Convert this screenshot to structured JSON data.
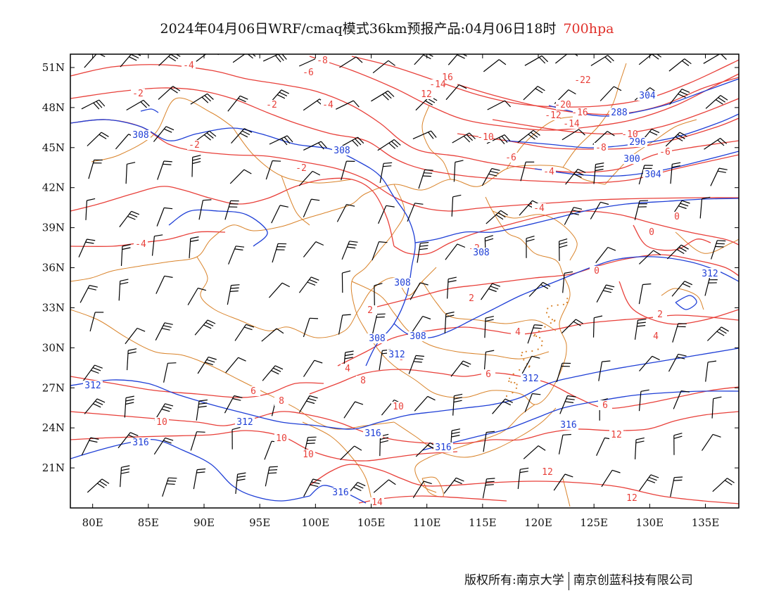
{
  "header": {
    "title": "2024年04月06日WRF/cmaq模式36km预报产品:04月06日18时",
    "level": "700hpa"
  },
  "footer": {
    "copyright": "版权所有:南京大学",
    "company": "南京创蓝科技有限公司"
  },
  "map": {
    "lon_range": [
      78,
      138
    ],
    "lat_range": [
      18,
      52
    ],
    "x_ticks": [
      "80E",
      "85E",
      "90E",
      "95E",
      "100E",
      "105E",
      "110E",
      "115E",
      "120E",
      "125E",
      "130E",
      "135E"
    ],
    "y_ticks": [
      "51N",
      "48N",
      "45N",
      "42N",
      "39N",
      "36N",
      "33N",
      "30N",
      "27N",
      "24N",
      "21N"
    ],
    "temperature_labels": [
      "-4",
      "-6",
      "-8",
      "16",
      "-14",
      "12",
      "-22",
      "-2",
      "-2",
      "-4",
      "-20",
      "-16",
      "-14",
      "-12",
      "-10",
      "-10",
      "-8",
      "-6",
      "-6",
      "-4",
      "-2",
      "-2",
      "-4",
      "0",
      "0",
      "-2",
      "0",
      "2",
      "2",
      "2",
      "4",
      "4",
      "4",
      "6",
      "6",
      "6",
      "6",
      "8",
      "8",
      "10",
      "10",
      "10",
      "10",
      "12",
      "12",
      "12",
      "14",
      "-4"
    ],
    "height_labels": [
      "304",
      "308",
      "308",
      "288",
      "296",
      "300",
      "304",
      "308",
      "308",
      "308",
      "308",
      "312",
      "312",
      "312",
      "312",
      "316",
      "316",
      "316",
      "316",
      "316"
    ],
    "colors": {
      "temperature": "#e8403a",
      "height": "#1f3fd6",
      "boundary": "#d9832a",
      "wind": "#000000"
    }
  }
}
